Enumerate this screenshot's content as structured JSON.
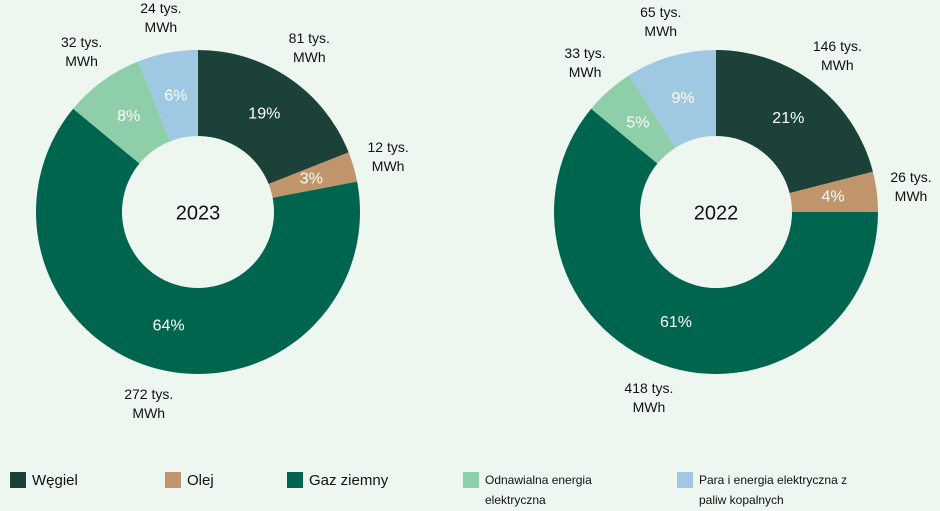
{
  "legend": {
    "categories": [
      "Węgiel",
      "Olej",
      "Gaz ziemny",
      "Odnawialna energia elektryczna",
      "Para i energia elektryczna z paliw kopalnych"
    ],
    "colors": [
      "#1b4139",
      "#c1956b",
      "#00654f",
      "#8ecfa9",
      "#9fc8e3"
    ]
  },
  "chart_data": [
    {
      "type": "pie",
      "title": "2023",
      "values": [
        19,
        3,
        64,
        8,
        6
      ],
      "value_labels": [
        "19%",
        "3%",
        "64%",
        "8%",
        "6%"
      ],
      "energy_labels": [
        "81 tys. MWh",
        "12 tys. MWh",
        "272 tys. MWh",
        "32 tys. MWh",
        "24 tys. MWh"
      ]
    },
    {
      "type": "pie",
      "title": "2022",
      "values": [
        21,
        4,
        61,
        5,
        9
      ],
      "value_labels": [
        "21%",
        "4%",
        "61%",
        "5%",
        "9%"
      ],
      "energy_labels": [
        "146 tys. MWh",
        "26 tys. MWh",
        "418 tys. MWh",
        "33 tys. MWh",
        "65 tys. MWh"
      ]
    }
  ]
}
